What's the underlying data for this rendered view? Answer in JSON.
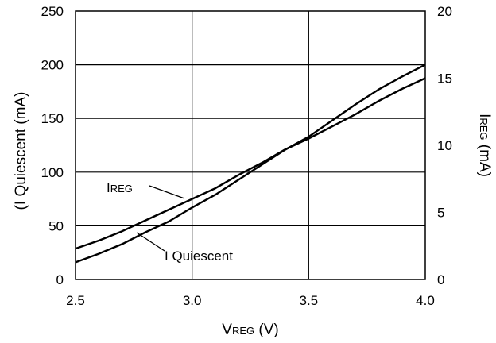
{
  "chart_data": {
    "type": "line",
    "xlabel": {
      "main": "V",
      "sub": "REG",
      "suffix": " (V)"
    },
    "ylabel_left": "(I Quiescent (mA)",
    "ylabel_right": {
      "main": "I",
      "sub": "REG",
      "suffix": " (mA)"
    },
    "xlim": [
      2.5,
      4.0
    ],
    "ylim_left": [
      0,
      250
    ],
    "ylim_right": [
      0,
      20
    ],
    "x_ticks": [
      "2.5",
      "3.0",
      "3.5",
      "4.0"
    ],
    "y_ticks_left": [
      "0",
      "50",
      "100",
      "150",
      "200",
      "250"
    ],
    "y_ticks_right": [
      "0",
      "5",
      "10",
      "15",
      "20"
    ],
    "grid": true,
    "series": [
      {
        "name": "I Quiescent",
        "axis": "left",
        "points": [
          [
            2.5,
            16
          ],
          [
            2.6,
            24
          ],
          [
            2.7,
            33
          ],
          [
            2.8,
            44
          ],
          [
            2.9,
            54
          ],
          [
            3.0,
            67
          ],
          [
            3.1,
            79
          ],
          [
            3.2,
            93
          ],
          [
            3.3,
            107
          ],
          [
            3.4,
            121
          ],
          [
            3.5,
            133
          ],
          [
            3.6,
            148
          ],
          [
            3.7,
            163
          ],
          [
            3.8,
            177
          ],
          [
            3.9,
            189
          ],
          [
            4.0,
            200
          ]
        ]
      },
      {
        "name": "IREG",
        "axis": "right",
        "points": [
          [
            2.5,
            2.3
          ],
          [
            2.6,
            2.9
          ],
          [
            2.7,
            3.6
          ],
          [
            2.8,
            4.4
          ],
          [
            2.9,
            5.2
          ],
          [
            3.0,
            6.0
          ],
          [
            3.1,
            6.8
          ],
          [
            3.2,
            7.8
          ],
          [
            3.3,
            8.7
          ],
          [
            3.4,
            9.7
          ],
          [
            3.5,
            10.5
          ],
          [
            3.6,
            11.4
          ],
          [
            3.7,
            12.3
          ],
          [
            3.8,
            13.3
          ],
          [
            3.9,
            14.2
          ],
          [
            4.0,
            15.0
          ]
        ]
      }
    ],
    "annotations": [
      {
        "target": "IREG",
        "main": "I",
        "sub": "REG"
      },
      {
        "target": "I Quiescent",
        "main": "I Quiescent",
        "sub": ""
      }
    ]
  }
}
